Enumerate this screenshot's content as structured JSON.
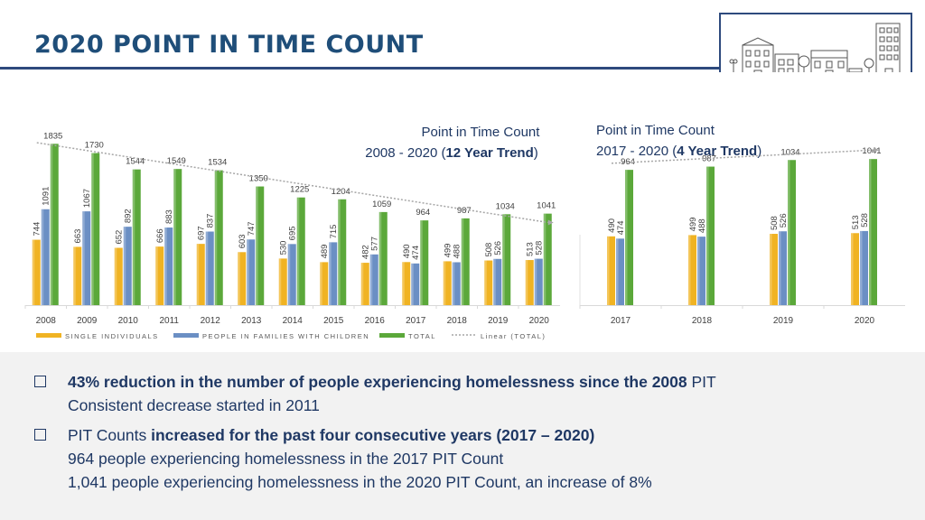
{
  "header": {
    "title": "2020 POINT IN TIME COUNT"
  },
  "chart_data": [
    {
      "type": "bar",
      "title_line1": "Point in Time Count",
      "title_range": "2008 - 2020 (",
      "title_bold": "12 Year Trend",
      "title_close": ")",
      "categories": [
        "2008",
        "2009",
        "2010",
        "2011",
        "2012",
        "2013",
        "2014",
        "2015",
        "2016",
        "2017",
        "2018",
        "2019",
        "2020"
      ],
      "series": [
        {
          "name": "SINGLE INDIVIDUALS",
          "color": "#f0b323",
          "values": [
            744,
            663,
            652,
            666,
            697,
            603,
            530,
            489,
            482,
            490,
            499,
            508,
            513
          ]
        },
        {
          "name": "PEOPLE IN FAMILIES WITH CHILDREN",
          "color": "#6b8fc4",
          "values": [
            1091,
            1067,
            892,
            883,
            837,
            747,
            695,
            715,
            577,
            474,
            488,
            526,
            528
          ]
        },
        {
          "name": "TOTAL",
          "color": "#5ba83a",
          "values": [
            1835,
            1730,
            1544,
            1549,
            1534,
            1350,
            1225,
            1204,
            1059,
            964,
            987,
            1034,
            1041
          ]
        }
      ],
      "trendline": {
        "name": "Linear (TOTAL)",
        "color": "#a6a6a6"
      },
      "ylim": [
        0,
        1900
      ]
    },
    {
      "type": "bar",
      "title_line1": "Point in Time Count",
      "title_range": "2017 - 2020 (",
      "title_bold": "4 Year Trend",
      "title_close": ")",
      "categories": [
        "2017",
        "2018",
        "2019",
        "2020"
      ],
      "series": [
        {
          "name": "SINGLE INDIVIDUALS",
          "color": "#f0b323",
          "values": [
            490,
            499,
            508,
            513
          ]
        },
        {
          "name": "PEOPLE IN FAMILIES WITH CHILDREN",
          "color": "#6b8fc4",
          "values": [
            474,
            488,
            526,
            528
          ]
        },
        {
          "name": "TOTAL",
          "color": "#5ba83a",
          "values": [
            964,
            987,
            1034,
            1041
          ]
        }
      ],
      "trendline": {
        "name": "Linear (TOTAL)",
        "color": "#a6a6a6"
      },
      "ylim": [
        0,
        1190
      ]
    }
  ],
  "legend": {
    "single": "SINGLE INDIVIDUALS",
    "families": "PEOPLE IN FAMILIES WITH CHILDREN",
    "total": "TOTAL",
    "linear": "Linear (TOTAL)"
  },
  "bullets": {
    "b1_bold": "43% reduction in the number of people experiencing homelessness since the 2008",
    "b1_tail": " PIT",
    "b1_sub": "Consistent decrease started in 2011",
    "b2_lead": "PIT Counts ",
    "b2_bold": "increased for the past four consecutive years (2017 – 2020)",
    "b2_sub1": "964 people experiencing homelessness in the 2017 PIT Count",
    "b2_sub2": "1,041 people experiencing homelessness in the 2020 PIT Count, an increase of 8%"
  }
}
